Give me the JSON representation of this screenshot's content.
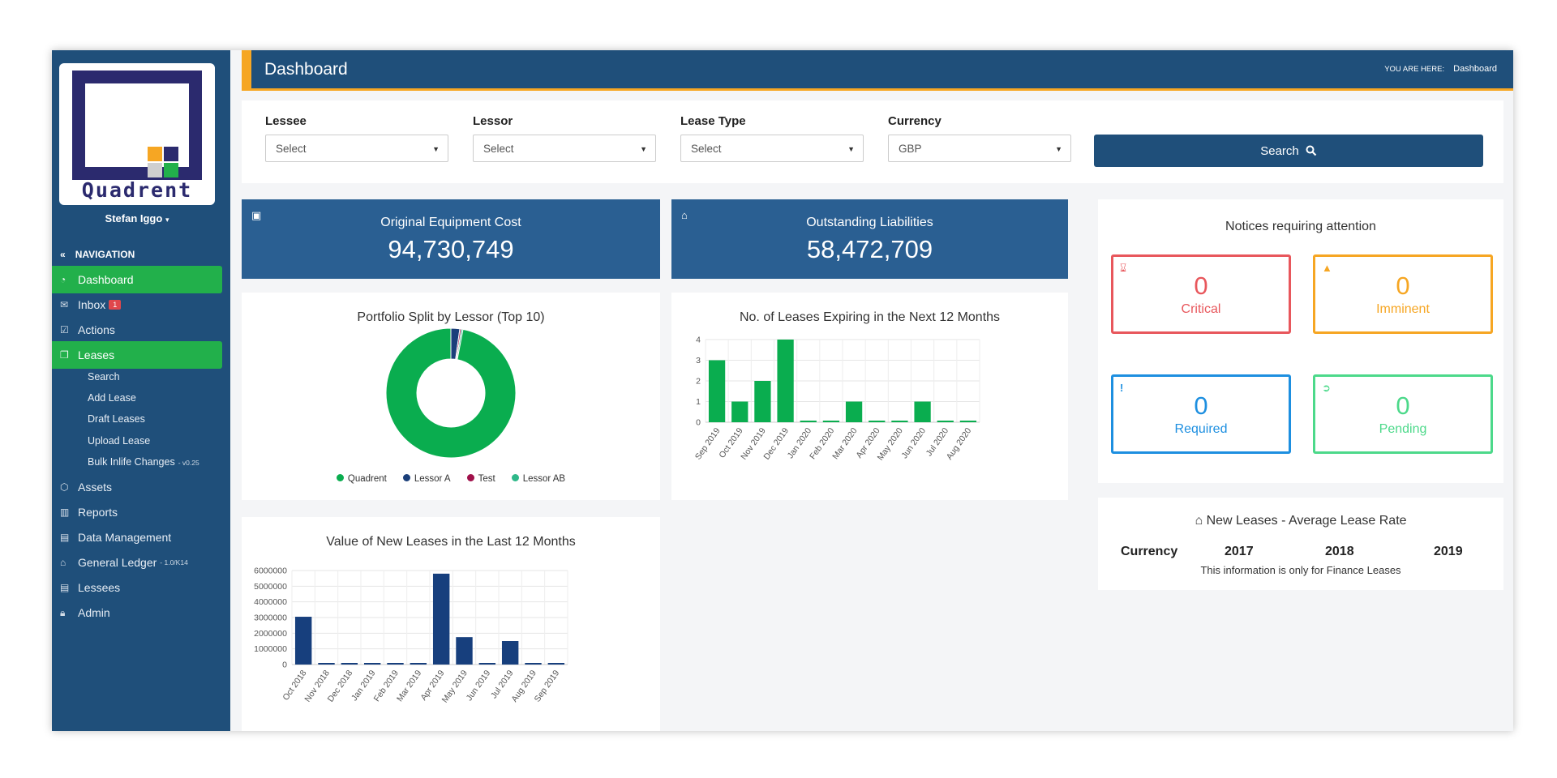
{
  "app": {
    "logo_text": "Quadrent",
    "user": "Stefan Iggo"
  },
  "sidebar": {
    "nav_heading": "NAVIGATION",
    "items": [
      {
        "label": "Dashboard",
        "icon": "dashboard-icon"
      },
      {
        "label": "Inbox",
        "icon": "envelope-icon",
        "badge": "1"
      },
      {
        "label": "Actions",
        "icon": "checkbox-icon"
      },
      {
        "label": "Leases",
        "icon": "copy-icon"
      },
      {
        "label": "Assets",
        "icon": "cubes-icon"
      },
      {
        "label": "Reports",
        "icon": "bar-chart-icon"
      },
      {
        "label": "Data Management",
        "icon": "briefcase-icon"
      },
      {
        "label": "General Ledger",
        "icon": "bank-icon",
        "version": "- 1.0/K14"
      },
      {
        "label": "Lessees",
        "icon": "briefcase-icon"
      },
      {
        "label": "Admin",
        "icon": "lock-icon"
      }
    ],
    "lease_sub_items": [
      {
        "label": "Search"
      },
      {
        "label": "Add Lease"
      },
      {
        "label": "Draft Leases"
      },
      {
        "label": "Upload Lease"
      },
      {
        "label": "Bulk Inlife Changes",
        "version": "- v0.25"
      }
    ]
  },
  "header": {
    "title": "Dashboard",
    "breadcrumb_label": "YOU ARE HERE:",
    "breadcrumb_value": "Dashboard"
  },
  "filters": {
    "lessee": {
      "label": "Lessee",
      "value": "Select"
    },
    "lessor": {
      "label": "Lessor",
      "value": "Select"
    },
    "lease_type": {
      "label": "Lease Type",
      "value": "Select"
    },
    "currency": {
      "label": "Currency",
      "value": "GBP"
    },
    "search_label": "Search"
  },
  "stats": {
    "equipment": {
      "label": "Original Equipment Cost",
      "value": "94,730,749"
    },
    "liabilities": {
      "label": "Outstanding Liabilities",
      "value": "58,472,709"
    }
  },
  "notices": {
    "title": "Notices requiring attention",
    "critical": {
      "label": "Critical",
      "value": "0",
      "color": "#e8575c"
    },
    "imminent": {
      "label": "Imminent",
      "value": "0",
      "color": "#f6a623"
    },
    "required": {
      "label": "Required",
      "value": "0",
      "color": "#1d8fe0"
    },
    "pending": {
      "label": "Pending",
      "value": "0",
      "color": "#4cd98a"
    }
  },
  "rates": {
    "title": "New Leases - Average Lease Rate",
    "headers": [
      "Currency",
      "2017",
      "2018",
      "2019"
    ],
    "note": "This information is only for Finance Leases"
  },
  "chart_data": [
    {
      "type": "pie",
      "title": "Portfolio Split by Lessor (Top 10)",
      "labels": [
        "Quadrent",
        "Lessor A",
        "Test",
        "Lessor AB"
      ],
      "values": [
        97,
        2.2,
        0.4,
        0.4
      ],
      "colors": [
        "#0aad4f",
        "#1b3f7a",
        "#a0104a",
        "#2eb889"
      ],
      "legend": "bottom"
    },
    {
      "type": "bar",
      "title": "No. of Leases Expiring in the Next 12 Months",
      "categories": [
        "Sep 2019",
        "Oct 2019",
        "Nov 2019",
        "Dec 2019",
        "Jan 2020",
        "Feb 2020",
        "Mar 2020",
        "Apr 2020",
        "May 2020",
        "Jun 2020",
        "Jul 2020",
        "Aug 2020"
      ],
      "values": [
        3,
        1,
        2,
        4,
        0,
        0,
        1,
        0,
        0,
        1,
        0,
        0
      ],
      "ylim": [
        0,
        4
      ],
      "yticks": [
        "0",
        "1",
        "2",
        "3",
        "4"
      ],
      "color": "#0aad4f",
      "grid": true
    },
    {
      "type": "bar",
      "title": "Value of New Leases in the Last 12 Months",
      "categories": [
        "Oct 2018",
        "Nov 2018",
        "Dec 2018",
        "Jan 2019",
        "Feb 2019",
        "Mar 2019",
        "Apr 2019",
        "May 2019",
        "Jun 2019",
        "Jul 2019",
        "Aug 2019",
        "Sep 2019"
      ],
      "values": [
        3050000,
        20000,
        20000,
        20000,
        20000,
        60000,
        5800000,
        1750000,
        20000,
        1500000,
        20000,
        20000
      ],
      "ylim": [
        0,
        6000000
      ],
      "yticks": [
        "0",
        "1000000",
        "2000000",
        "3000000",
        "4000000",
        "5000000",
        "6000000"
      ],
      "color": "#173f7d",
      "grid": true
    }
  ]
}
